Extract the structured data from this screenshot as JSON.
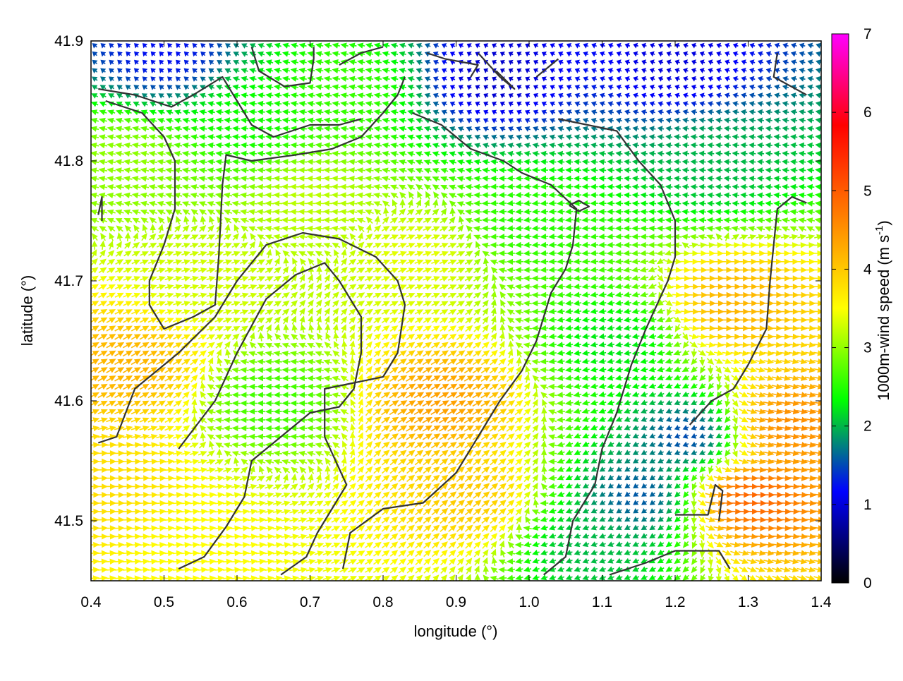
{
  "chart_data": {
    "type": "vector-field",
    "xlabel": "longitude (°)",
    "ylabel": "latitude (°)",
    "xlim": [
      0.4,
      1.4
    ],
    "ylim": [
      41.45,
      41.9
    ],
    "xticks": [
      "0.4",
      "0.5",
      "0.6",
      "0.7",
      "0.8",
      "0.9",
      "1.0",
      "1.1",
      "1.2",
      "1.3",
      "1.4"
    ],
    "xtick_values": [
      0.4,
      0.5,
      0.6,
      0.7,
      0.8,
      0.9,
      1.0,
      1.1,
      1.2,
      1.3,
      1.4
    ],
    "yticks": [
      "41.5",
      "41.6",
      "41.7",
      "41.8",
      "41.9"
    ],
    "ytick_values": [
      41.5,
      41.6,
      41.7,
      41.8,
      41.9
    ],
    "colorbar": {
      "label": "1000m-wind speed (m s",
      "label_superscript": "-1",
      "label_suffix": ")",
      "range": [
        0,
        7
      ],
      "ticks": [
        "0",
        "1",
        "2",
        "3",
        "4",
        "5",
        "6",
        "7"
      ],
      "tick_values": [
        0,
        1,
        2,
        3,
        4,
        5,
        6,
        7
      ],
      "colors": [
        "#000000",
        "#0000ff",
        "#00ff00",
        "#ffff00",
        "#ff8000",
        "#ff0000",
        "#ff00ff"
      ]
    },
    "wind_regions": [
      {
        "lon": 0.45,
        "lat": 41.63,
        "speed": 4.2,
        "dir_deg": 30
      },
      {
        "lon": 0.42,
        "lat": 41.53,
        "speed": 3.8,
        "dir_deg": 0
      },
      {
        "lon": 0.55,
        "lat": 41.48,
        "speed": 3.5,
        "dir_deg": 5
      },
      {
        "lon": 0.55,
        "lat": 41.7,
        "speed": 3.3,
        "dir_deg": 15
      },
      {
        "lon": 0.45,
        "lat": 41.8,
        "speed": 3.0,
        "dir_deg": 170
      },
      {
        "lon": 0.7,
        "lat": 41.77,
        "speed": 3.2,
        "dir_deg": 178
      },
      {
        "lon": 0.65,
        "lat": 41.6,
        "speed": 2.6,
        "dir_deg": 180
      },
      {
        "lon": 0.88,
        "lat": 41.6,
        "speed": 4.4,
        "dir_deg": 30
      },
      {
        "lon": 0.92,
        "lat": 41.52,
        "speed": 4.0,
        "dir_deg": 40
      },
      {
        "lon": 0.85,
        "lat": 41.72,
        "speed": 3.4,
        "dir_deg": 20
      },
      {
        "lon": 1.0,
        "lat": 41.75,
        "speed": 2.5,
        "dir_deg": 185
      },
      {
        "lon": 1.12,
        "lat": 41.65,
        "speed": 2.2,
        "dir_deg": 190
      },
      {
        "lon": 1.22,
        "lat": 41.57,
        "speed": 1.4,
        "dir_deg": 200
      },
      {
        "lon": 1.15,
        "lat": 41.52,
        "speed": 1.5,
        "dir_deg": 215
      },
      {
        "lon": 1.08,
        "lat": 41.48,
        "speed": 2.0,
        "dir_deg": 200
      },
      {
        "lon": 1.28,
        "lat": 41.68,
        "speed": 4.2,
        "dir_deg": 0
      },
      {
        "lon": 1.3,
        "lat": 41.52,
        "speed": 5.0,
        "dir_deg": 0
      },
      {
        "lon": 1.35,
        "lat": 41.58,
        "speed": 4.6,
        "dir_deg": 350
      },
      {
        "lon": 1.25,
        "lat": 41.8,
        "speed": 2.0,
        "dir_deg": 175
      },
      {
        "lon": 0.5,
        "lat": 41.89,
        "speed": 1.2,
        "dir_deg": 135
      },
      {
        "lon": 0.95,
        "lat": 41.87,
        "speed": 0.9,
        "dir_deg": 150
      },
      {
        "lon": 1.2,
        "lat": 41.88,
        "speed": 1.0,
        "dir_deg": 160
      },
      {
        "lon": 0.75,
        "lat": 41.86,
        "speed": 2.6,
        "dir_deg": 170
      },
      {
        "lon": 0.62,
        "lat": 41.83,
        "speed": 2.4,
        "dir_deg": 175
      }
    ],
    "contours": [
      [
        [
          0.41,
          41.565
        ],
        [
          0.435,
          41.57
        ],
        [
          0.46,
          41.61
        ],
        [
          0.52,
          41.64
        ],
        [
          0.57,
          41.67
        ],
        [
          0.6,
          41.7
        ],
        [
          0.64,
          41.73
        ],
        [
          0.69,
          41.74
        ],
        [
          0.74,
          41.735
        ],
        [
          0.79,
          41.72
        ],
        [
          0.82,
          41.7
        ],
        [
          0.83,
          41.68
        ],
        [
          0.82,
          41.64
        ],
        [
          0.8,
          41.62
        ],
        [
          0.76,
          41.615
        ],
        [
          0.72,
          41.61
        ],
        [
          0.72,
          41.57
        ],
        [
          0.735,
          41.55
        ],
        [
          0.75,
          41.53
        ],
        [
          0.73,
          41.51
        ],
        [
          0.71,
          41.49
        ],
        [
          0.695,
          41.47
        ],
        [
          0.66,
          41.455
        ]
      ],
      [
        [
          0.52,
          41.46
        ],
        [
          0.555,
          41.47
        ],
        [
          0.585,
          41.495
        ],
        [
          0.61,
          41.52
        ],
        [
          0.62,
          41.55
        ],
        [
          0.66,
          41.57
        ],
        [
          0.7,
          41.59
        ],
        [
          0.74,
          41.595
        ],
        [
          0.76,
          41.61
        ],
        [
          0.77,
          41.64
        ],
        [
          0.77,
          41.67
        ],
        [
          0.74,
          41.7
        ],
        [
          0.72,
          41.715
        ],
        [
          0.68,
          41.705
        ],
        [
          0.64,
          41.685
        ],
        [
          0.6,
          41.64
        ],
        [
          0.57,
          41.6
        ],
        [
          0.52,
          41.56
        ]
      ],
      [
        [
          0.745,
          41.46
        ],
        [
          0.755,
          41.49
        ],
        [
          0.8,
          41.51
        ],
        [
          0.855,
          41.515
        ],
        [
          0.9,
          41.54
        ],
        [
          0.93,
          41.57
        ],
        [
          0.96,
          41.6
        ],
        [
          0.99,
          41.625
        ],
        [
          1.01,
          41.65
        ],
        [
          1.03,
          41.69
        ],
        [
          1.05,
          41.71
        ],
        [
          1.06,
          41.73
        ],
        [
          1.065,
          41.76
        ],
        [
          1.03,
          41.78
        ],
        [
          0.99,
          41.79
        ],
        [
          0.965,
          41.8
        ],
        [
          0.92,
          41.81
        ],
        [
          0.88,
          41.83
        ],
        [
          0.84,
          41.84
        ]
      ],
      [
        [
          0.41,
          41.755
        ],
        [
          0.415,
          41.77
        ],
        [
          0.415,
          41.75
        ]
      ],
      [
        [
          0.42,
          41.85
        ],
        [
          0.47,
          41.84
        ],
        [
          0.5,
          41.82
        ],
        [
          0.515,
          41.8
        ],
        [
          0.515,
          41.76
        ],
        [
          0.5,
          41.73
        ],
        [
          0.48,
          41.7
        ],
        [
          0.48,
          41.68
        ],
        [
          0.5,
          41.66
        ],
        [
          0.54,
          41.67
        ],
        [
          0.57,
          41.68
        ],
        [
          0.575,
          41.72
        ],
        [
          0.58,
          41.78
        ],
        [
          0.585,
          41.805
        ],
        [
          0.62,
          41.8
        ],
        [
          0.68,
          41.805
        ],
        [
          0.73,
          41.81
        ],
        [
          0.77,
          41.82
        ],
        [
          0.8,
          41.84
        ],
        [
          0.82,
          41.855
        ],
        [
          0.83,
          41.87
        ]
      ],
      [
        [
          1.02,
          41.455
        ],
        [
          1.05,
          41.47
        ],
        [
          1.06,
          41.5
        ],
        [
          1.09,
          41.53
        ],
        [
          1.1,
          41.56
        ],
        [
          1.12,
          41.59
        ],
        [
          1.14,
          41.63
        ],
        [
          1.16,
          41.66
        ],
        [
          1.19,
          41.7
        ],
        [
          1.2,
          41.72
        ],
        [
          1.2,
          41.75
        ],
        [
          1.18,
          41.78
        ],
        [
          1.15,
          41.8
        ],
        [
          1.12,
          41.825
        ],
        [
          1.08,
          41.83
        ],
        [
          1.04,
          41.835
        ]
      ],
      [
        [
          1.11,
          41.455
        ],
        [
          1.16,
          41.465
        ],
        [
          1.2,
          41.475
        ],
        [
          1.24,
          41.475
        ],
        [
          1.26,
          41.475
        ],
        [
          1.275,
          41.46
        ]
      ],
      [
        [
          1.2,
          41.505
        ],
        [
          1.245,
          41.505
        ],
        [
          1.255,
          41.53
        ],
        [
          1.265,
          41.525
        ],
        [
          1.26,
          41.5
        ]
      ],
      [
        [
          1.22,
          41.58
        ],
        [
          1.25,
          41.6
        ],
        [
          1.28,
          41.61
        ],
        [
          1.3,
          41.63
        ],
        [
          1.325,
          41.66
        ],
        [
          1.33,
          41.7
        ],
        [
          1.335,
          41.73
        ],
        [
          1.34,
          41.76
        ],
        [
          1.36,
          41.77
        ],
        [
          1.38,
          41.765
        ]
      ],
      [
        [
          1.055,
          41.763
        ],
        [
          1.068,
          41.767
        ],
        [
          1.082,
          41.762
        ],
        [
          1.068,
          41.758
        ],
        [
          1.055,
          41.763
        ]
      ],
      [
        [
          0.93,
          41.89
        ],
        [
          0.96,
          41.87
        ],
        [
          0.98,
          41.86
        ],
        [
          0.955,
          41.875
        ]
      ],
      [
        [
          0.86,
          41.89
        ],
        [
          0.885,
          41.885
        ],
        [
          0.93,
          41.88
        ],
        [
          0.92,
          41.87
        ]
      ],
      [
        [
          0.74,
          41.88
        ],
        [
          0.77,
          41.89
        ],
        [
          0.8,
          41.895
        ]
      ],
      [
        [
          0.62,
          41.895
        ],
        [
          0.63,
          41.875
        ],
        [
          0.665,
          41.862
        ],
        [
          0.7,
          41.865
        ],
        [
          0.705,
          41.885
        ],
        [
          0.705,
          41.895
        ]
      ],
      [
        [
          0.41,
          41.86
        ],
        [
          0.46,
          41.855
        ],
        [
          0.51,
          41.845
        ],
        [
          0.54,
          41.855
        ],
        [
          0.58,
          41.87
        ],
        [
          0.6,
          41.85
        ],
        [
          0.62,
          41.83
        ],
        [
          0.65,
          41.82
        ],
        [
          0.7,
          41.83
        ],
        [
          0.74,
          41.83
        ],
        [
          0.77,
          41.835
        ]
      ],
      [
        [
          1.04,
          41.885
        ],
        [
          1.02,
          41.875
        ],
        [
          1.01,
          41.87
        ]
      ],
      [
        [
          1.34,
          41.89
        ],
        [
          1.335,
          41.87
        ],
        [
          1.38,
          41.855
        ]
      ]
    ]
  }
}
